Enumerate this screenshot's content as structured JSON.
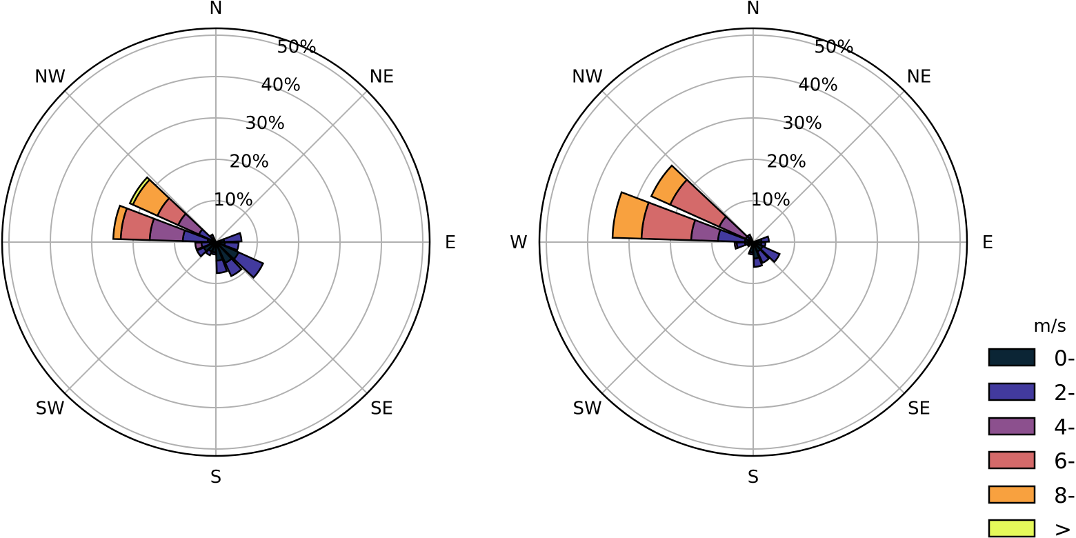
{
  "chart_data": [
    {
      "type": "windrose",
      "directions": [
        "N",
        "NE",
        "E",
        "SE",
        "S",
        "SW",
        "W",
        "NW"
      ],
      "radial_ticks": [
        "10%",
        "20%",
        "30%",
        "40%",
        "50%"
      ],
      "radial_values": [
        10,
        20,
        30,
        40,
        50
      ],
      "rmax": 50,
      "bins": [
        {
          "dir_deg": 78.75,
          "cumulative": [
            2.0,
            6.2,
            null,
            null,
            null,
            null
          ]
        },
        {
          "dir_deg": 101.25,
          "cumulative": [
            2.2,
            5.5,
            null,
            null,
            null,
            null
          ]
        },
        {
          "dir_deg": 123.75,
          "cumulative": [
            6.0,
            12.5,
            null,
            null,
            null,
            null
          ]
        },
        {
          "dir_deg": 146.25,
          "cumulative": [
            5.5,
            9.0,
            null,
            null,
            null,
            null
          ]
        },
        {
          "dir_deg": 168.75,
          "cumulative": [
            4.5,
            7.5,
            null,
            null,
            null,
            null
          ]
        },
        {
          "dir_deg": 191.25,
          "cumulative": [
            2.5,
            3.0,
            null,
            null,
            null,
            null
          ]
        },
        {
          "dir_deg": 213.75,
          "cumulative": [
            2.5,
            3.5,
            null,
            null,
            null,
            null
          ]
        },
        {
          "dir_deg": 236.25,
          "cumulative": [
            3.2,
            5.0,
            null,
            null,
            null,
            null
          ]
        },
        {
          "dir_deg": 258.75,
          "cumulative": [
            1.5,
            3.5,
            5.0,
            null,
            null,
            null
          ]
        },
        {
          "dir_deg": 281.25,
          "cumulative": [
            2.0,
            8.0,
            16.0,
            23.0,
            24.8,
            null
          ]
        },
        {
          "dir_deg": 303.75,
          "cumulative": [
            1.0,
            4.5,
            10.0,
            15.5,
            22.0,
            22.8
          ]
        },
        {
          "dir_deg": 326.25,
          "cumulative": [
            1.0,
            2.0,
            null,
            null,
            null,
            null
          ]
        }
      ]
    },
    {
      "type": "windrose",
      "directions": [
        "N",
        "NE",
        "E",
        "SE",
        "S",
        "SW",
        "W",
        "NW"
      ],
      "radial_ticks": [
        "10%",
        "20%",
        "30%",
        "40%",
        "50%"
      ],
      "radial_values": [
        10,
        20,
        30,
        40,
        50
      ],
      "rmax": 50,
      "bins": [
        {
          "dir_deg": 78.75,
          "cumulative": [
            2.0,
            3.8,
            null,
            null,
            null,
            null
          ]
        },
        {
          "dir_deg": 101.25,
          "cumulative": [
            2.0,
            3.0,
            null,
            null,
            null,
            null
          ]
        },
        {
          "dir_deg": 123.75,
          "cumulative": [
            2.5,
            7.0,
            null,
            null,
            null,
            null
          ]
        },
        {
          "dir_deg": 146.25,
          "cumulative": [
            2.5,
            5.5,
            null,
            null,
            null,
            null
          ]
        },
        {
          "dir_deg": 168.75,
          "cumulative": [
            4.0,
            6.0,
            null,
            null,
            null,
            null
          ]
        },
        {
          "dir_deg": 191.25,
          "cumulative": [
            2.5,
            3.0,
            null,
            null,
            null,
            null
          ]
        },
        {
          "dir_deg": 236.25,
          "cumulative": [
            1.0,
            1.5,
            null,
            null,
            null,
            null
          ]
        },
        {
          "dir_deg": 258.75,
          "cumulative": [
            2.0,
            4.0,
            4.5,
            null,
            null,
            null
          ]
        },
        {
          "dir_deg": 281.25,
          "cumulative": [
            2.0,
            8.5,
            15.0,
            27.0,
            34.0,
            null
          ]
        },
        {
          "dir_deg": 303.75,
          "cumulative": [
            1.0,
            2.0,
            9.0,
            22.0,
            27.0,
            null
          ]
        },
        {
          "dir_deg": 326.25,
          "cumulative": [
            1.0,
            2.0,
            null,
            null,
            null,
            null
          ]
        }
      ]
    }
  ],
  "legend": {
    "title": "m/s",
    "items": [
      {
        "label": "0-",
        "color": "#0b2535"
      },
      {
        "label": "2-",
        "color": "#423a9e"
      },
      {
        "label": "4-",
        "color": "#8c508e"
      },
      {
        "label": "6-",
        "color": "#d46a6a"
      },
      {
        "label": "8-",
        "color": "#f8a13f"
      },
      {
        "label": ">",
        "color": "#e5f95a"
      }
    ]
  },
  "colors": {
    "grid": "#b0b0b0",
    "frame": "#000000",
    "edge": "#000000"
  }
}
